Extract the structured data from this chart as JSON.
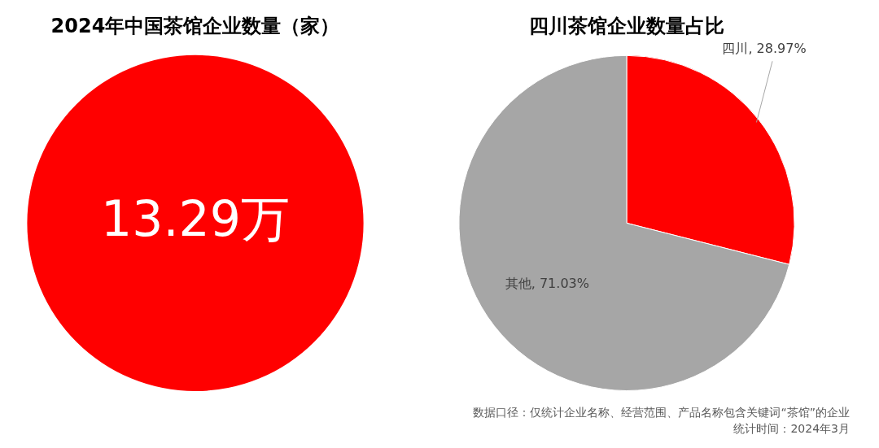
{
  "chart_data": [
    {
      "type": "pie",
      "title": "2024年中国茶馆企业数量（家）",
      "categories": [
        null
      ],
      "values": [
        13.29
      ],
      "colors": [
        "#ff0000"
      ],
      "value_labels": [
        "13.29万"
      ]
    },
    {
      "type": "pie",
      "title": "四川茶馆企业数量占比",
      "categories": [
        "四川",
        "其他"
      ],
      "values": [
        28.97,
        71.03
      ],
      "colors": [
        "#ff0000",
        "#a6a6a6"
      ],
      "value_labels": [
        "28.97%",
        "71.03%"
      ],
      "annotations": [
        "数据口径：仅统计企业名称、经营范围、产品名称包含关键词“茶馆”的企业",
        "统计时间：2024年3月"
      ]
    }
  ]
}
